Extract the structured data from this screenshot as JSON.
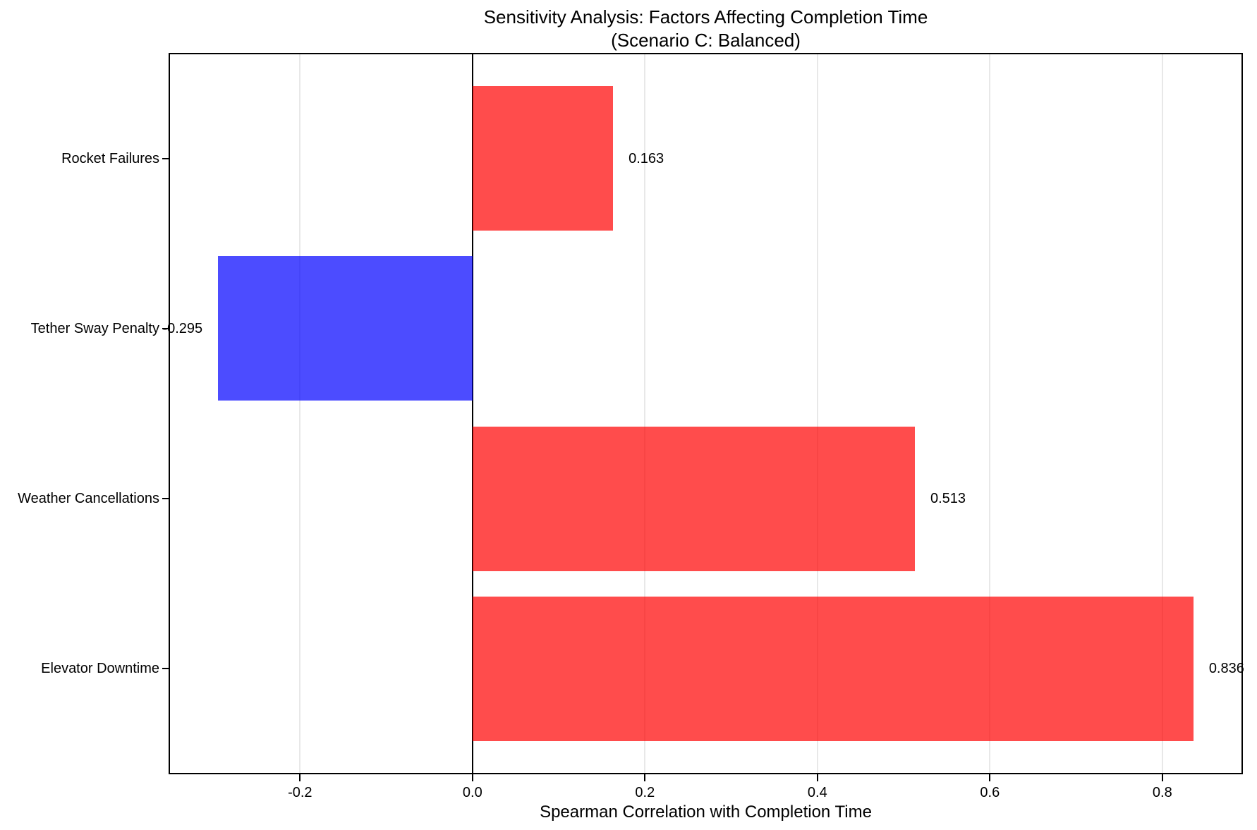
{
  "figure": {
    "title_line1": "Sensitivity Analysis: Factors Affecting Completion Time",
    "title_line2": "(Scenario C: Balanced)",
    "xlabel": "Spearman Correlation with Completion Time",
    "background_color": "#ffffff"
  },
  "chart_data": {
    "type": "bar",
    "orientation": "horizontal",
    "title": "Sensitivity Analysis: Factors Affecting Completion Time (Scenario C: Balanced)",
    "xlabel": "Spearman Correlation with Completion Time",
    "ylabel": "",
    "categories_top_to_bottom": [
      "Rocket Failures",
      "Tether Sway Penalty",
      "Weather Cancellations",
      "Elevator Downtime"
    ],
    "values_top_to_bottom": [
      0.163,
      -0.295,
      0.513,
      0.836
    ],
    "value_labels_top_to_bottom": [
      "0.163",
      "-0.295",
      "0.513",
      "0.836"
    ],
    "positive_color": "#ff0000",
    "negative_color": "#0000ff",
    "bar_alpha": 0.7,
    "bar_height_frac": 0.85,
    "xlim": [
      -0.3516,
      0.8926
    ],
    "ylim": [
      -0.6175,
      3.6175
    ],
    "xticks": [
      -0.2,
      0.0,
      0.2,
      0.4,
      0.6,
      0.8
    ],
    "xtick_labels": [
      "-0.2",
      "0.0",
      "0.2",
      "0.4",
      "0.6",
      "0.8"
    ],
    "grid_axis": "x",
    "grid_color": "#e8e8e8",
    "zero_line_color": "#000000",
    "spine_color": "#000000",
    "text_color": "#000000",
    "legend": "none",
    "value_label_offset_units": 0.018
  }
}
